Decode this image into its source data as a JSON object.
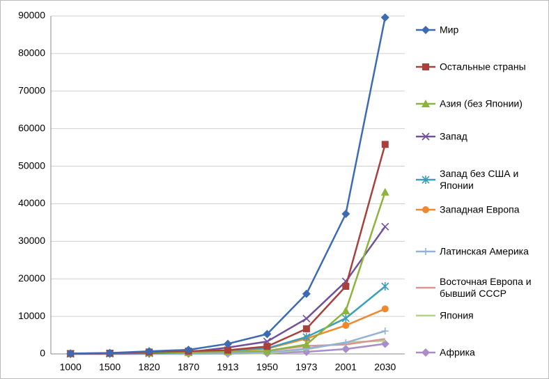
{
  "chart_data": {
    "type": "line",
    "categories": [
      "1000",
      "1500",
      "1820",
      "1870",
      "1913",
      "1950",
      "1973",
      "2001",
      "2030"
    ],
    "ylim": [
      0,
      90000
    ],
    "yticks": [
      0,
      10000,
      20000,
      30000,
      40000,
      50000,
      60000,
      70000,
      80000,
      90000
    ],
    "grid": true,
    "series": [
      {
        "name": "Мир",
        "color": "#3d6bb3",
        "marker": "diamond",
        "values": [
          117,
          248,
          695,
          1100,
          2700,
          5300,
          16000,
          37300,
          89600
        ]
      },
      {
        "name": "Остальные страны",
        "color": "#a8403c",
        "marker": "square",
        "values": [
          90,
          180,
          500,
          750,
          1000,
          2000,
          6700,
          18000,
          55800
        ]
      },
      {
        "name": "Азия (без Японии)",
        "color": "#8db33c",
        "marker": "triangle",
        "values": [
          100,
          160,
          400,
          400,
          600,
          800,
          2500,
          11500,
          43100
        ]
      },
      {
        "name": "Запад",
        "color": "#71509c",
        "marker": "x",
        "values": [
          30,
          90,
          200,
          500,
          1700,
          3300,
          9400,
          19300,
          33900
        ]
      },
      {
        "name": "Запад без США и Японии",
        "color": "#3a9fb9",
        "marker": "asterisk",
        "values": [
          25,
          80,
          200,
          400,
          1000,
          1500,
          4500,
          9500,
          18000
        ]
      },
      {
        "name": "Западная Европа",
        "color": "#f0892e",
        "marker": "circle",
        "values": [
          11,
          44,
          160,
          370,
          900,
          1400,
          4100,
          7600,
          12000
        ]
      },
      {
        "name": "Латинская Америка",
        "color": "#93b1d9",
        "marker": "plus",
        "values": [
          5,
          7,
          15,
          27,
          120,
          420,
          1400,
          3000,
          6100
        ]
      },
      {
        "name": "Восточная Европа и бывший СССР",
        "color": "#d99593",
        "marker": "none",
        "values": [
          13,
          25,
          60,
          140,
          400,
          800,
          2100,
          2500,
          4000
        ]
      },
      {
        "name": "Япония",
        "color": "#b5d28a",
        "marker": "none",
        "values": [
          3,
          8,
          21,
          25,
          72,
          160,
          1200,
          3100,
          3500
        ]
      },
      {
        "name": "Африка",
        "color": "#a98dc8",
        "marker": "diamond",
        "values": [
          14,
          19,
          30,
          45,
          80,
          200,
          550,
          1300,
          2700
        ]
      }
    ]
  }
}
